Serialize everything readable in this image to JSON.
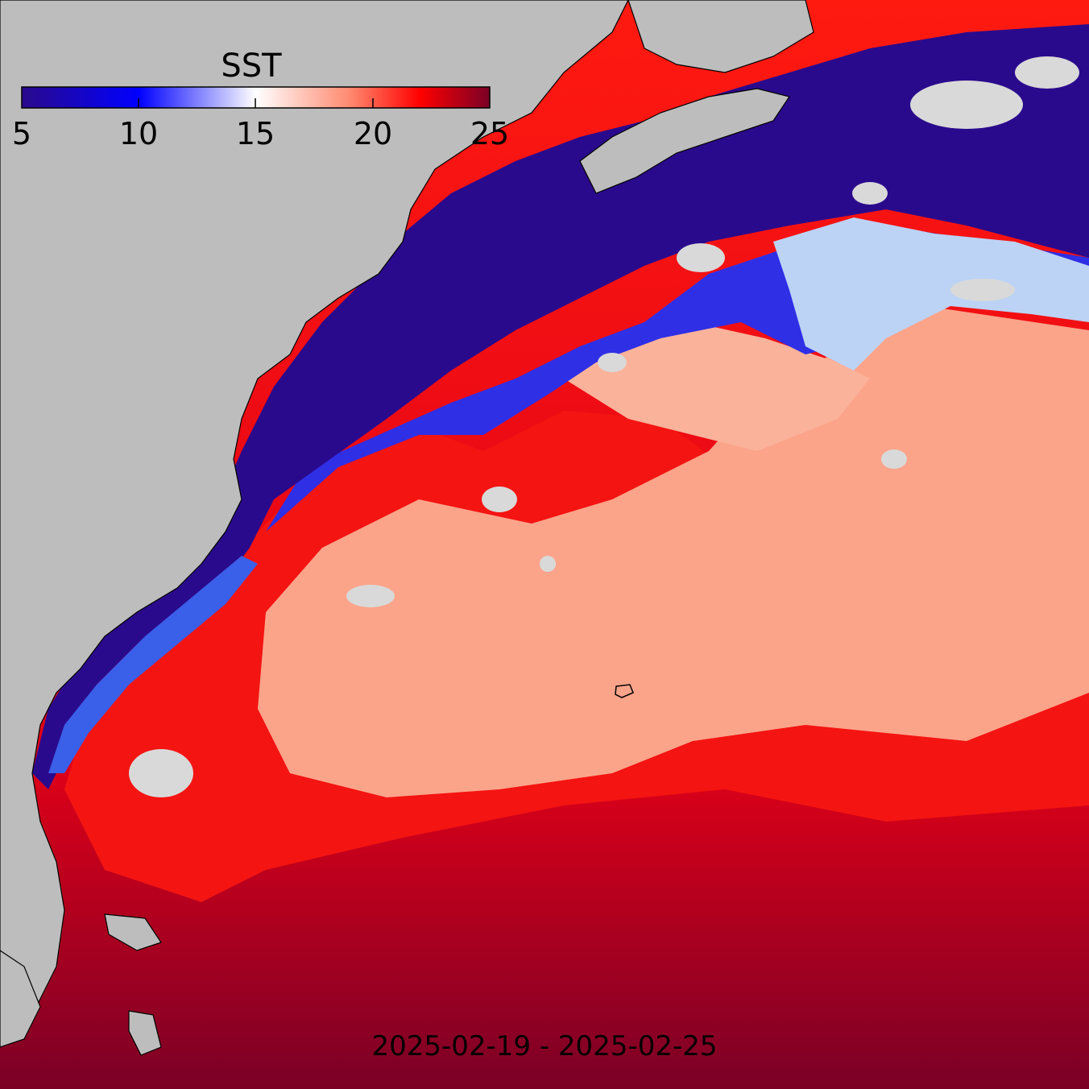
{
  "map": {
    "colorbar": {
      "title": "SST",
      "ticks": [
        "5",
        "10",
        "15",
        "20",
        "25"
      ],
      "min": 5,
      "max": 25,
      "colors": [
        "#2a0a8c",
        "#0000ff",
        "#ffffff",
        "#ff8060",
        "#ff0000",
        "#7a0026"
      ]
    },
    "date_range": "2025-02-19 - 2025-02-25",
    "colors": {
      "land": "#bdbdbd",
      "cloud": "#d9d9d9",
      "cold_water": "#2a0a8c",
      "warm_water": "#7a0026"
    }
  }
}
